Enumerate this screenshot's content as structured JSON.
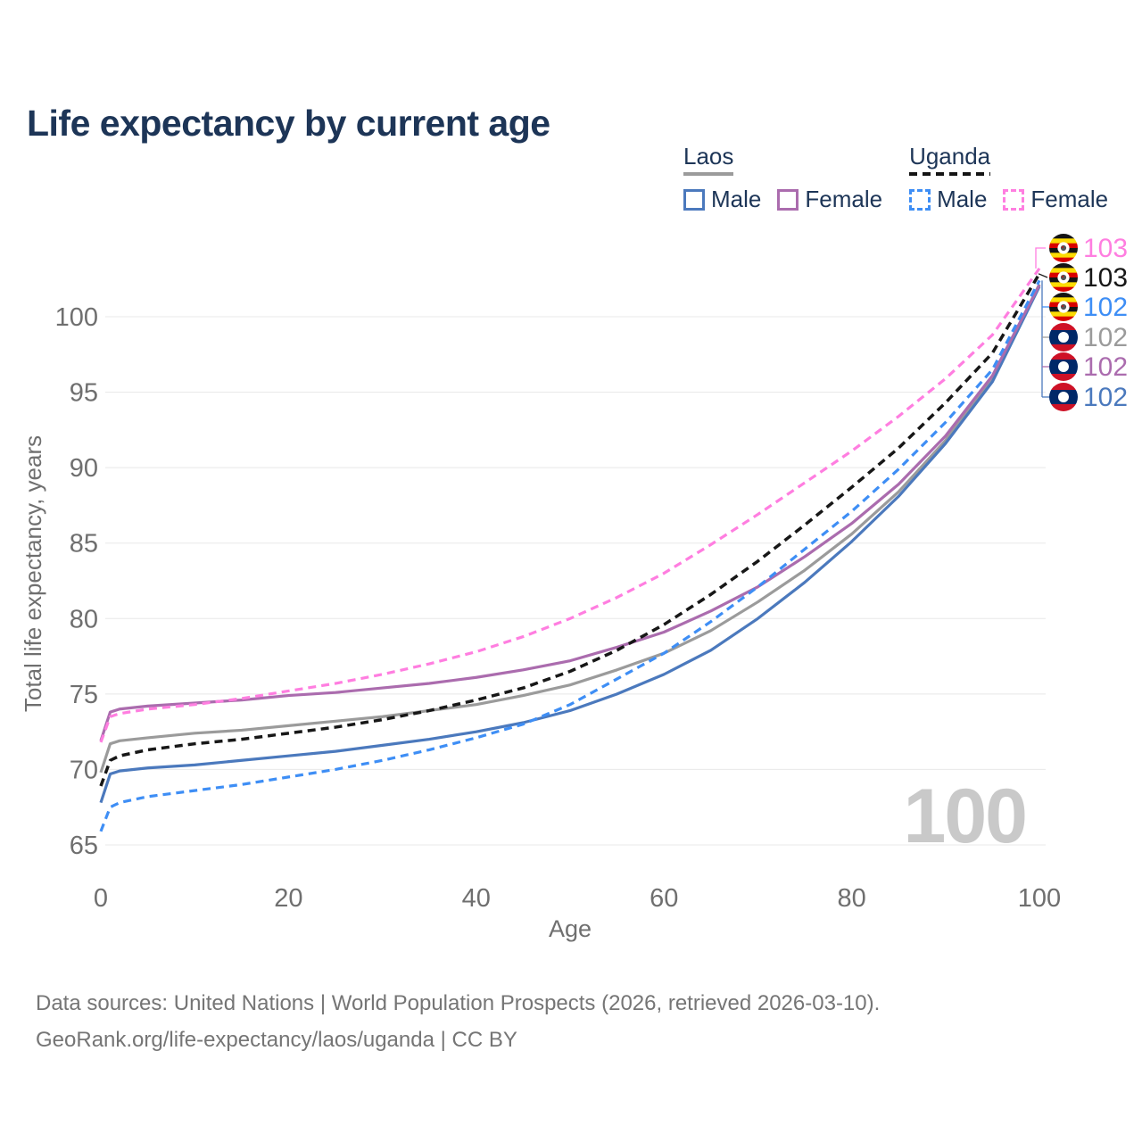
{
  "title": "Life expectancy by current age",
  "watermark": "100",
  "legend": {
    "groups": [
      {
        "label": "Laos",
        "line_style": "solid",
        "underline_color": "#9b9b9b",
        "items": [
          {
            "label": "Male",
            "color": "#4b79bd",
            "dashed": false
          },
          {
            "label": "Female",
            "color": "#ab6cae",
            "dashed": false
          }
        ]
      },
      {
        "label": "Uganda",
        "line_style": "dashed",
        "underline_color": "#141414",
        "items": [
          {
            "label": "Male",
            "color": "#3e8ef5",
            "dashed": true
          },
          {
            "label": "Female",
            "color": "#ff7ee0",
            "dashed": true
          }
        ]
      }
    ]
  },
  "footer": {
    "line1": "Data sources: United Nations | World Population Prospects (2026, retrieved 2026-03-10).",
    "line2": "GeoRank.org/life-expectancy/laos/uganda | CC BY"
  },
  "chart_data": {
    "type": "line",
    "title": "Life expectancy by current age",
    "xlabel": "Age",
    "ylabel": "Total life expectancy, years",
    "xlim": [
      0,
      100
    ],
    "ylim": [
      65,
      103.5
    ],
    "xticks": [
      0,
      20,
      40,
      60,
      80,
      100
    ],
    "yticks": [
      65,
      70,
      75,
      80,
      85,
      90,
      95,
      100
    ],
    "grid": true,
    "grid_color": "#e8e8e8",
    "tick_color": "#6f6f6f",
    "axis_label_color": "#6f6f6f",
    "watermark_color": "#c9c9c9",
    "legend_position": "top-right",
    "x": [
      0,
      1,
      2,
      5,
      10,
      15,
      20,
      25,
      30,
      35,
      40,
      45,
      50,
      55,
      60,
      65,
      70,
      75,
      80,
      85,
      90,
      95,
      100
    ],
    "series": [
      {
        "id": "laos-all",
        "name": "Laos",
        "flag": "laos-flag-icon",
        "color": "#9b9b9b",
        "dashed": false,
        "end_label": "102",
        "end_row": 3,
        "values": [
          69.8,
          71.7,
          71.9,
          72.1,
          72.4,
          72.6,
          72.9,
          73.2,
          73.5,
          73.9,
          74.3,
          74.9,
          75.6,
          76.6,
          77.7,
          79.2,
          81.1,
          83.2,
          85.6,
          88.4,
          91.8,
          95.9,
          102.15
        ]
      },
      {
        "id": "laos-male",
        "name": "Laos Male",
        "flag": "laos-flag-icon",
        "color": "#4b79bd",
        "dashed": false,
        "end_label": "102",
        "end_row": 5,
        "values": [
          67.8,
          69.7,
          69.9,
          70.1,
          70.3,
          70.6,
          70.9,
          71.2,
          71.6,
          72.0,
          72.5,
          73.1,
          73.9,
          75.0,
          76.3,
          77.9,
          80.0,
          82.4,
          85.1,
          88.1,
          91.6,
          95.7,
          102.0
        ]
      },
      {
        "id": "laos-female",
        "name": "Laos Female",
        "flag": "laos-flag-icon",
        "color": "#ab6cae",
        "dashed": false,
        "end_label": "102",
        "end_row": 4,
        "values": [
          71.9,
          73.8,
          74.0,
          74.2,
          74.4,
          74.6,
          74.9,
          75.1,
          75.4,
          75.7,
          76.1,
          76.6,
          77.2,
          78.1,
          79.1,
          80.5,
          82.1,
          84.1,
          86.3,
          88.9,
          92.1,
          96.1,
          102.1
        ]
      },
      {
        "id": "uganda-all",
        "name": "Uganda",
        "flag": "uganda-flag-icon",
        "color": "#171717",
        "dashed": true,
        "end_label": "103",
        "end_row": 1,
        "values": [
          68.9,
          70.6,
          70.9,
          71.3,
          71.7,
          72.0,
          72.4,
          72.8,
          73.3,
          73.9,
          74.6,
          75.4,
          76.5,
          77.9,
          79.6,
          81.6,
          83.8,
          86.2,
          88.7,
          91.3,
          94.3,
          97.6,
          102.85
        ]
      },
      {
        "id": "uganda-male",
        "name": "Uganda Male",
        "flag": "uganda-flag-icon",
        "color": "#3e8ef5",
        "dashed": true,
        "end_label": "102",
        "end_row": 2,
        "values": [
          65.9,
          67.5,
          67.8,
          68.2,
          68.6,
          69.0,
          69.5,
          70.0,
          70.6,
          71.3,
          72.1,
          73.0,
          74.3,
          76.0,
          77.7,
          79.8,
          82.1,
          84.6,
          87.1,
          89.9,
          93.0,
          96.5,
          102.4
        ]
      },
      {
        "id": "uganda-female",
        "name": "Uganda Female",
        "flag": "uganda-flag-icon",
        "color": "#ff7ee0",
        "dashed": true,
        "end_label": "103",
        "end_row": 0,
        "values": [
          71.8,
          73.5,
          73.7,
          74.0,
          74.3,
          74.7,
          75.2,
          75.7,
          76.3,
          77.0,
          77.8,
          78.8,
          80.0,
          81.4,
          83.0,
          84.9,
          86.9,
          89.0,
          91.1,
          93.4,
          95.9,
          98.8,
          103.2
        ]
      }
    ]
  }
}
